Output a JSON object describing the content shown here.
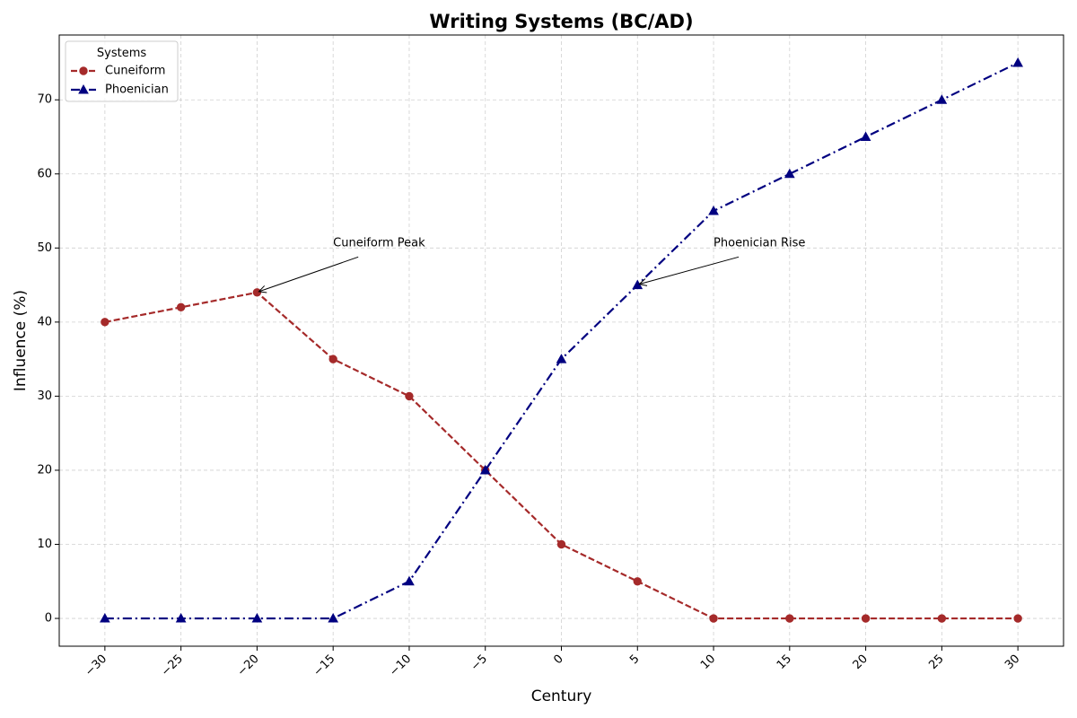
{
  "chart_data": {
    "type": "line",
    "title": "Writing Systems (BC/AD)",
    "xlabel": "Century",
    "ylabel": "Influence (%)",
    "x": [
      -30,
      -25,
      -20,
      -15,
      -10,
      -5,
      0,
      5,
      10,
      15,
      20,
      25,
      30
    ],
    "x_ticks": [
      "−30",
      "−25",
      "−20",
      "−15",
      "−10",
      "−5",
      "0",
      "5",
      "10",
      "15",
      "20",
      "25",
      "30"
    ],
    "y_ticks": [
      "0",
      "10",
      "20",
      "30",
      "40",
      "50",
      "60",
      "70"
    ],
    "xlim": [
      -33,
      33
    ],
    "ylim": [
      -3.75,
      78.75
    ],
    "grid": true,
    "legend": {
      "title": "Systems",
      "placement": "top-left"
    },
    "series": [
      {
        "name": "Cuneiform",
        "values": [
          40,
          42,
          44,
          35,
          30,
          20,
          10,
          5,
          0,
          0,
          0,
          0,
          0
        ],
        "color": "#a52a2a",
        "line_style": "dashed",
        "marker": "circle"
      },
      {
        "name": "Phoenician",
        "values": [
          0,
          0,
          0,
          0,
          5,
          20,
          35,
          45,
          55,
          60,
          65,
          70,
          75
        ],
        "color": "#000080",
        "line_style": "dash-dot",
        "marker": "triangle"
      }
    ],
    "annotations": [
      {
        "text": "Cuneiform Peak",
        "point": [
          -20,
          44
        ],
        "text_at": [
          -15,
          50
        ]
      },
      {
        "text": "Phoenician Rise",
        "point": [
          5,
          45
        ],
        "text_at": [
          10,
          50
        ]
      }
    ]
  }
}
